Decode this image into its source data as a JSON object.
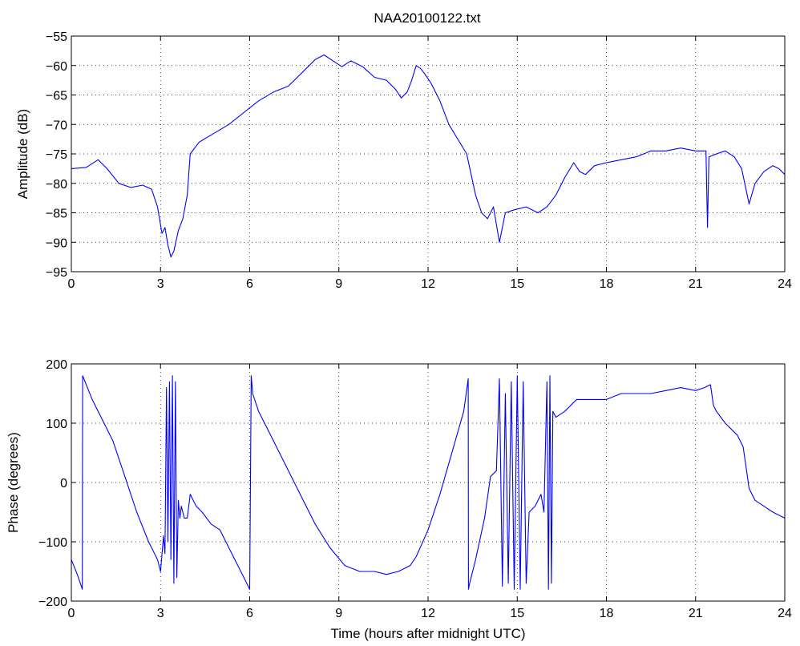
{
  "figure": {
    "title": "NAA20100122.txt",
    "line_color": "#0000ff"
  },
  "chart_data": [
    {
      "type": "line",
      "title": "NAA20100122.txt",
      "xlabel": "",
      "ylabel": "Amplitude (dB)",
      "xlim": [
        0,
        24
      ],
      "ylim": [
        -95,
        -55
      ],
      "xticks": [
        0,
        3,
        6,
        9,
        12,
        15,
        18,
        21,
        24
      ],
      "yticks": [
        -95,
        -90,
        -85,
        -80,
        -75,
        -70,
        -65,
        -60,
        -55
      ],
      "grid": true,
      "series": [
        {
          "color": "#0000ff",
          "x": [
            0,
            0.5,
            0.9,
            1.2,
            1.6,
            2.0,
            2.4,
            2.7,
            2.9,
            3.05,
            3.15,
            3.25,
            3.35,
            3.45,
            3.6,
            3.75,
            3.9,
            4.0,
            4.3,
            4.8,
            5.3,
            5.8,
            6.3,
            6.8,
            7.3,
            7.8,
            8.2,
            8.5,
            8.8,
            9.1,
            9.4,
            9.8,
            10.2,
            10.6,
            10.9,
            11.1,
            11.3,
            11.45,
            11.6,
            11.75,
            11.9,
            12.1,
            12.4,
            12.7,
            13.0,
            13.3,
            13.6,
            13.8,
            14.0,
            14.2,
            14.4,
            14.6,
            14.9,
            15.3,
            15.7,
            16.0,
            16.3,
            16.6,
            16.9,
            17.1,
            17.3,
            17.6,
            18.0,
            18.5,
            19.0,
            19.5,
            20.0,
            20.5,
            21.0,
            21.35,
            21.4,
            21.45,
            21.7,
            22.0,
            22.3,
            22.55,
            22.8,
            23.0,
            23.3,
            23.6,
            23.8,
            24.0
          ],
          "y": [
            -77.5,
            -77.3,
            -76.0,
            -77.5,
            -80.0,
            -80.7,
            -80.3,
            -81.0,
            -84.0,
            -88.5,
            -87.5,
            -90.5,
            -92.5,
            -91.5,
            -88.0,
            -86.0,
            -82.0,
            -75.0,
            -73.0,
            -71.5,
            -70.0,
            -68.0,
            -66.0,
            -64.5,
            -63.5,
            -61.0,
            -59.0,
            -58.2,
            -59.2,
            -60.2,
            -59.2,
            -60.2,
            -62.0,
            -62.5,
            -64.0,
            -65.5,
            -64.5,
            -62.5,
            -60.0,
            -60.5,
            -61.5,
            -63.0,
            -66.0,
            -70.0,
            -72.5,
            -75.0,
            -82.0,
            -85.0,
            -86.0,
            -84.0,
            -90.0,
            -85.0,
            -84.5,
            -84.0,
            -85.0,
            -84.0,
            -82.0,
            -79.0,
            -76.5,
            -78.0,
            -78.5,
            -77.0,
            -76.5,
            -76.0,
            -75.5,
            -74.5,
            -74.5,
            -74.0,
            -74.5,
            -74.5,
            -87.5,
            -75.5,
            -75.0,
            -74.5,
            -75.5,
            -77.5,
            -83.5,
            -80.0,
            -78.0,
            -77.0,
            -77.5,
            -78.5
          ]
        }
      ]
    },
    {
      "type": "line",
      "title": "",
      "xlabel": "Time (hours after midnight UTC)",
      "ylabel": "Phase (degrees)",
      "xlim": [
        0,
        24
      ],
      "ylim": [
        -200,
        200
      ],
      "xticks": [
        0,
        3,
        6,
        9,
        12,
        15,
        18,
        21,
        24
      ],
      "yticks": [
        -200,
        -100,
        0,
        100,
        200
      ],
      "grid": true,
      "series": [
        {
          "color": "#0000ff",
          "x": [
            0,
            0.2,
            0.37,
            0.38,
            0.42,
            0.7,
            1.0,
            1.4,
            1.8,
            2.2,
            2.6,
            2.9,
            3.0,
            3.1,
            3.15,
            3.2,
            3.25,
            3.3,
            3.35,
            3.4,
            3.45,
            3.5,
            3.55,
            3.6,
            3.65,
            3.7,
            3.8,
            3.9,
            4.0,
            4.2,
            4.4,
            4.7,
            5.0,
            5.3,
            5.6,
            5.9,
            6.0,
            6.05,
            6.1,
            6.3,
            6.7,
            7.2,
            7.7,
            8.2,
            8.7,
            9.2,
            9.7,
            10.2,
            10.6,
            11.0,
            11.4,
            11.6,
            12.0,
            12.4,
            12.8,
            13.2,
            13.35,
            13.36,
            13.4,
            13.6,
            13.9,
            14.1,
            14.3,
            14.4,
            14.5,
            14.6,
            14.7,
            14.8,
            14.9,
            15.0,
            15.1,
            15.2,
            15.3,
            15.4,
            15.6,
            15.8,
            15.9,
            16.0,
            16.05,
            16.1,
            16.15,
            16.2,
            16.3,
            16.6,
            17.0,
            17.5,
            18.0,
            18.5,
            19.0,
            19.5,
            20.0,
            20.5,
            21.0,
            21.3,
            21.5,
            21.6,
            21.7,
            22.0,
            22.4,
            22.6,
            22.8,
            23.0,
            23.3,
            23.6,
            24.0
          ],
          "y": [
            -130,
            -155,
            -180,
            180,
            175,
            140,
            110,
            70,
            10,
            -50,
            -100,
            -130,
            -150,
            -90,
            -120,
            160,
            -100,
            170,
            -130,
            180,
            -170,
            170,
            -160,
            -30,
            -60,
            -40,
            -60,
            -60,
            -20,
            -40,
            -50,
            -70,
            -80,
            -110,
            -140,
            -170,
            -180,
            180,
            150,
            120,
            80,
            30,
            -20,
            -70,
            -110,
            -140,
            -150,
            -150,
            -155,
            -150,
            -140,
            -125,
            -80,
            -20,
            50,
            120,
            175,
            -180,
            -170,
            -130,
            -60,
            10,
            20,
            175,
            -175,
            150,
            -170,
            170,
            -180,
            180,
            -180,
            170,
            -170,
            -50,
            -40,
            -20,
            -50,
            170,
            -180,
            180,
            -170,
            120,
            110,
            120,
            140,
            140,
            140,
            150,
            150,
            150,
            155,
            160,
            155,
            160,
            165,
            130,
            120,
            100,
            80,
            60,
            -10,
            -30,
            -40,
            -50,
            -60
          ]
        }
      ]
    }
  ]
}
